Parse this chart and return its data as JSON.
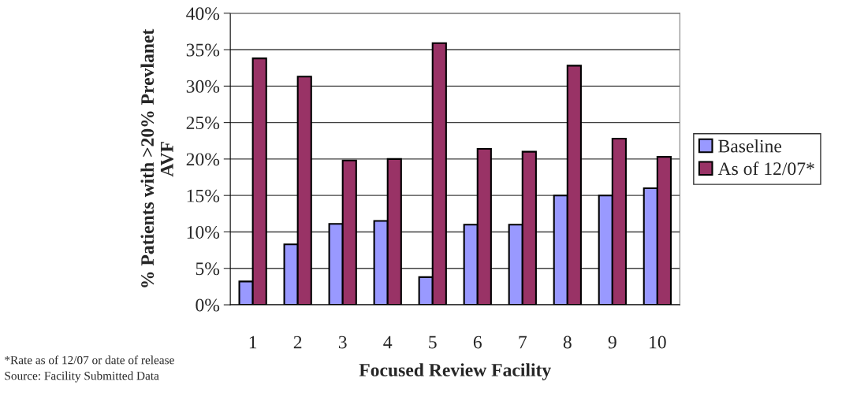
{
  "chart_data": {
    "type": "bar",
    "xlabel": "Focused Review Facility",
    "ylabel": "% Patients with >20% Prevlanet\nAVF",
    "categories": [
      "1",
      "2",
      "3",
      "4",
      "5",
      "6",
      "7",
      "8",
      "9",
      "10"
    ],
    "series": [
      {
        "name": "Baseline",
        "color": "#9999ff",
        "values": [
          3.2,
          8.3,
          11.1,
          11.5,
          3.8,
          11.0,
          11.0,
          15.0,
          15.0,
          16.0
        ]
      },
      {
        "name": "As of 12/07*",
        "color": "#993366",
        "values": [
          33.8,
          31.3,
          19.8,
          20.0,
          35.9,
          21.4,
          21.0,
          32.8,
          22.8,
          20.3
        ]
      }
    ],
    "ylim": [
      0,
      40
    ],
    "yticks": [
      {
        "value": 0,
        "label": "0%"
      },
      {
        "value": 5,
        "label": "5%"
      },
      {
        "value": 10,
        "label": "10%"
      },
      {
        "value": 15,
        "label": "15%"
      },
      {
        "value": 20,
        "label": "20%"
      },
      {
        "value": 25,
        "label": "25%"
      },
      {
        "value": 30,
        "label": "30%"
      },
      {
        "value": 35,
        "label": "35%"
      },
      {
        "value": 40,
        "label": "40%"
      }
    ],
    "grid": "y",
    "legend": "right",
    "annotations": [
      "*Rate as of 12/07 or date of release",
      "Source: Facility Submitted Data"
    ]
  }
}
